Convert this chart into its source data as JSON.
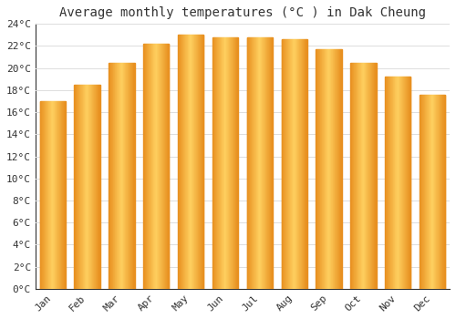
{
  "title": "Average monthly temperatures (°C ) in Dak Cheung",
  "months": [
    "Jan",
    "Feb",
    "Mar",
    "Apr",
    "May",
    "Jun",
    "Jul",
    "Aug",
    "Sep",
    "Oct",
    "Nov",
    "Dec"
  ],
  "values": [
    17.0,
    18.5,
    20.5,
    22.2,
    23.0,
    22.8,
    22.8,
    22.6,
    21.7,
    20.5,
    19.2,
    17.6
  ],
  "bar_color_left": "#E89020",
  "bar_color_center": "#FFD060",
  "bar_color_right": "#E89020",
  "ylim": [
    0,
    24
  ],
  "yticks": [
    0,
    2,
    4,
    6,
    8,
    10,
    12,
    14,
    16,
    18,
    20,
    22,
    24
  ],
  "ylabel_suffix": "°C",
  "bg_color": "#FFFFFF",
  "grid_color": "#DDDDDD",
  "title_fontsize": 10,
  "tick_fontsize": 8,
  "font_family": "monospace",
  "bar_width": 0.75,
  "axis_color": "#333333"
}
